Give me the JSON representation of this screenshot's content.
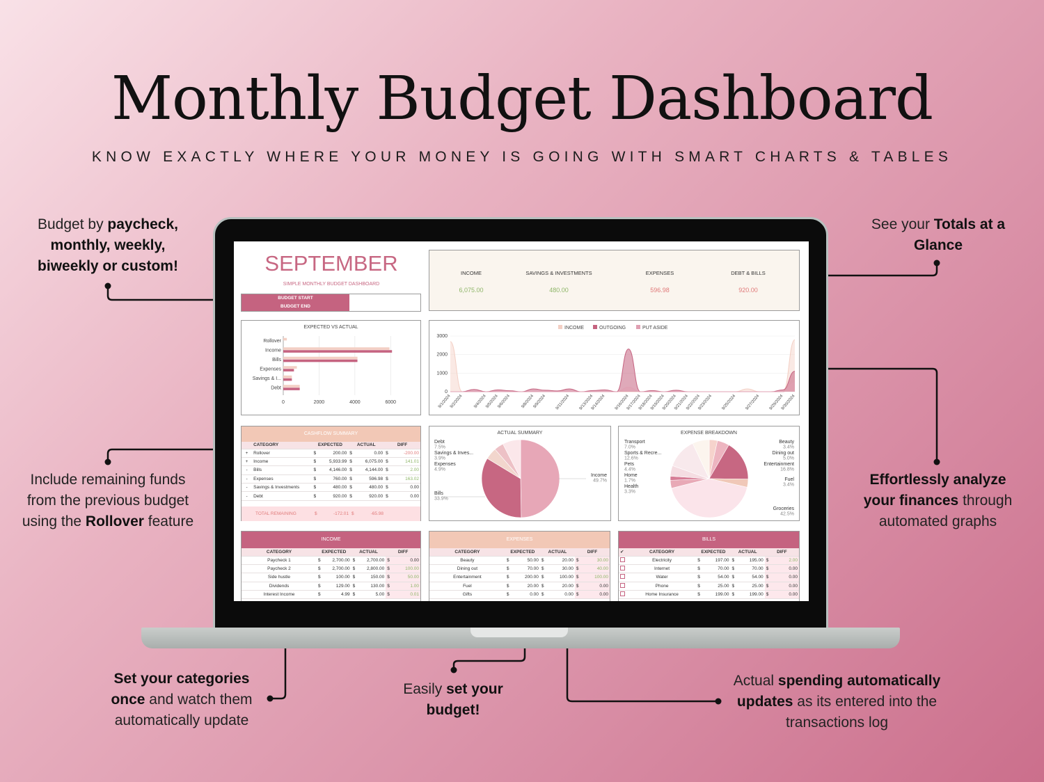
{
  "title": "Monthly Budget Dashboard",
  "subtitle": "KNOW EXACTLY WHERE YOUR MONEY IS GOING WITH SMART CHARTS & TABLES",
  "callouts": {
    "top_left": {
      "a": "Budget by ",
      "b": "paycheck,",
      "c": "monthly, weekly,",
      "d": "biweekly or custom!"
    },
    "top_right": {
      "a": "See your ",
      "b": "Totals at a",
      "c": "Glance"
    },
    "mid_left": {
      "a": "Include remaining funds",
      "b": "from the previous budget",
      "c": "using the ",
      "d": "Rollover",
      "e": " feature"
    },
    "mid_right": {
      "a": "Effortlessly analyze",
      "b": "your finances",
      "c": " through",
      "d": "automated graphs"
    },
    "bot_left": {
      "a": "Set your categories",
      "b": "once",
      "c": " and watch them",
      "d": "automatically update"
    },
    "bot_mid": {
      "a": "Easily ",
      "b": "set your",
      "c": "budget!"
    },
    "bot_right": {
      "a": "Actual ",
      "b": "spending automatically",
      "c": "updates",
      "d": " as its entered into the",
      "e": "transactions log"
    }
  },
  "dashboard": {
    "month": "SEPTEMBER",
    "month_sub": "SIMPLE MONTHLY BUDGET DASHBOARD",
    "budget_start": "BUDGET START",
    "budget_end": "BUDGET END",
    "totals": [
      {
        "label": "INCOME",
        "value": "6,075.00",
        "color": "#8db567"
      },
      {
        "label": "SAVINGS & INVESTMENTS",
        "value": "480.00",
        "color": "#8db567"
      },
      {
        "label": "EXPENSES",
        "value": "596.98",
        "color": "#e07a7a"
      },
      {
        "label": "DEBT & BILLS",
        "value": "920.00",
        "color": "#e07a7a"
      }
    ],
    "evsa_title": "EXPECTED VS ACTUAL",
    "line_legend": [
      "INCOME",
      "OUTGOING",
      "PUT ASIDE"
    ],
    "cashflow": {
      "title": "CASHFLOW SUMMARY",
      "cols": [
        "CATEGORY",
        "EXPECTED",
        "ACTUAL",
        "DIFF"
      ],
      "rows": [
        {
          "sign": "+",
          "cat": "Rollover",
          "exp": "200.00",
          "act": "0.00",
          "diff": "-200.00",
          "dc": "rd"
        },
        {
          "sign": "+",
          "cat": "Income",
          "exp": "5,933.99",
          "act": "6,075.00",
          "diff": "141.01",
          "dc": "gr"
        },
        {
          "sign": "-",
          "cat": "Bills",
          "exp": "4,146.00",
          "act": "4,144.00",
          "diff": "2.00",
          "dc": "gr"
        },
        {
          "sign": "-",
          "cat": "Expenses",
          "exp": "760.00",
          "act": "596.98",
          "diff": "163.02",
          "dc": "gr"
        },
        {
          "sign": "-",
          "cat": "Savings & Investments",
          "exp": "480.00",
          "act": "480.00",
          "diff": "0.00",
          "dc": ""
        },
        {
          "sign": "-",
          "cat": "Debt",
          "exp": "920.00",
          "act": "920.00",
          "diff": "0.00",
          "dc": ""
        }
      ],
      "total_label": "TOTAL REMAINING",
      "total_exp": "-172.01",
      "total_act": "-65.98"
    },
    "actual_summary_title": "ACTUAL SUMMARY",
    "expense_breakdown_title": "EXPENSE BREAKDOWN",
    "income_table": {
      "title": "INCOME",
      "cols": [
        "CATEGORY",
        "EXPECTED",
        "ACTUAL",
        "DIFF"
      ],
      "rows": [
        {
          "cat": "Paycheck 1",
          "exp": "2,700.00",
          "act": "2,700.00",
          "diff": "0.00",
          "dc": ""
        },
        {
          "cat": "Paycheck 2",
          "exp": "2,700.00",
          "act": "2,800.00",
          "diff": "100.00",
          "dc": "gr"
        },
        {
          "cat": "Side hustle",
          "exp": "100.00",
          "act": "150.00",
          "diff": "50.00",
          "dc": "gr"
        },
        {
          "cat": "Dividends",
          "exp": "129.00",
          "act": "130.00",
          "diff": "1.00",
          "dc": "gr"
        },
        {
          "cat": "Interest Income",
          "exp": "4.99",
          "act": "5.00",
          "diff": "0.01",
          "dc": "gr"
        }
      ]
    },
    "expenses_table": {
      "title": "EXPENSES",
      "cols": [
        "CATEGORY",
        "EXPECTED",
        "ACTUAL",
        "DIFF"
      ],
      "rows": [
        {
          "cat": "Beauty",
          "exp": "50.00",
          "act": "20.00",
          "diff": "30.00",
          "dc": "gr"
        },
        {
          "cat": "Dining out",
          "exp": "70.00",
          "act": "30.00",
          "diff": "40.00",
          "dc": "gr"
        },
        {
          "cat": "Entertainment",
          "exp": "200.00",
          "act": "100.00",
          "diff": "100.00",
          "dc": "gr"
        },
        {
          "cat": "Fuel",
          "exp": "20.00",
          "act": "20.00",
          "diff": "0.00",
          "dc": ""
        },
        {
          "cat": "Gifts",
          "exp": "0.00",
          "act": "0.00",
          "diff": "0.00",
          "dc": ""
        }
      ]
    },
    "bills_table": {
      "title": "BILLS",
      "cols": [
        "✔",
        "CATEGORY",
        "EXPECTED",
        "ACTUAL",
        "DIFF"
      ],
      "rows": [
        {
          "cat": "Electricity",
          "exp": "197.00",
          "act": "195.00",
          "diff": "2.00",
          "dc": "gr"
        },
        {
          "cat": "Internet",
          "exp": "70.00",
          "act": "70.00",
          "diff": "0.00",
          "dc": ""
        },
        {
          "cat": "Water",
          "exp": "54.00",
          "act": "54.00",
          "diff": "0.00",
          "dc": ""
        },
        {
          "cat": "Phone",
          "exp": "25.00",
          "act": "25.00",
          "diff": "0.00",
          "dc": ""
        },
        {
          "cat": "Home Insurance",
          "exp": "199.00",
          "act": "199.00",
          "diff": "0.00",
          "dc": ""
        }
      ]
    }
  },
  "chart_data": [
    {
      "type": "bar",
      "title": "EXPECTED VS ACTUAL",
      "orientation": "horizontal",
      "categories": [
        "Rollover",
        "Income",
        "Bills",
        "Expenses",
        "Savings & I...",
        "Debt"
      ],
      "series": [
        {
          "values": [
            200,
            5933.99,
            4146,
            760,
            480,
            920
          ],
          "color": "#f3cfc4"
        },
        {
          "values": [
            0,
            6075,
            4144,
            596.98,
            480,
            920
          ],
          "color": "#c56380"
        }
      ],
      "xticks": [
        "0",
        "2000",
        "4000",
        "6000"
      ],
      "xlim": [
        0,
        7000
      ]
    },
    {
      "type": "area",
      "legend": [
        "INCOME",
        "OUTGOING",
        "PUT ASIDE"
      ],
      "legend_position": "top",
      "yticks": [
        "0",
        "1000",
        "2000",
        "3000"
      ],
      "ylim": [
        0,
        3000
      ],
      "x": [
        "9/1/2024",
        "9/2/2024",
        "9/3/2024",
        "9/4/2024",
        "9/5/2024",
        "9/6/2024",
        "9/7/2024",
        "9/8/2024",
        "9/9/2024",
        "9/10/2024",
        "9/11/2024",
        "9/12/2024",
        "9/13/2024",
        "9/14/2024",
        "9/15/2024",
        "9/16/2024",
        "9/17/2024",
        "9/18/2024",
        "9/19/2024",
        "9/20/2024",
        "9/21/2024",
        "9/22/2024",
        "9/23/2024",
        "9/24/2024",
        "9/25/2024",
        "9/26/2024",
        "9/27/2024",
        "9/28/2024",
        "9/29/2024",
        "9/30/2024"
      ],
      "xticks": [
        "9/1/2024",
        "9/2/2024",
        "9/4/2024",
        "9/5/2024",
        "9/6/2024",
        "9/8/2024",
        "9/9/2024",
        "9/11/2024",
        "9/13/2024",
        "9/14/2024",
        "9/16/2024",
        "9/17/2024",
        "9/18/2024",
        "9/19/2024",
        "9/20/2024",
        "9/21/2024",
        "9/22/2024",
        "9/23/2024",
        "9/25/2024",
        "9/27/2024",
        "9/29/2024",
        "9/30/2024"
      ],
      "series": [
        {
          "name": "INCOME",
          "color": "#f3cfc4",
          "values": [
            2700,
            0,
            0,
            0,
            0,
            0,
            0,
            0,
            0,
            0,
            0,
            0,
            0,
            0,
            0,
            0,
            0,
            0,
            0,
            0,
            0,
            0,
            0,
            0,
            0,
            150,
            0,
            0,
            0,
            2800
          ]
        },
        {
          "name": "OUTGOING",
          "color": "#c56380",
          "values": [
            0,
            0,
            120,
            0,
            100,
            50,
            0,
            150,
            80,
            40,
            150,
            0,
            60,
            100,
            0,
            2300,
            0,
            60,
            0,
            80,
            0,
            0,
            0,
            0,
            0,
            0,
            0,
            0,
            100,
            1100
          ]
        },
        {
          "name": "PUT ASIDE",
          "color": "#e0a0b3",
          "values": [
            0,
            0,
            0,
            0,
            0,
            0,
            0,
            0,
            0,
            0,
            0,
            0,
            0,
            0,
            0,
            240,
            0,
            0,
            0,
            0,
            0,
            0,
            0,
            0,
            0,
            0,
            0,
            0,
            0,
            480
          ]
        }
      ]
    },
    {
      "type": "pie",
      "title": "ACTUAL SUMMARY",
      "slices": [
        {
          "label": "Income",
          "pct": "49.7%",
          "value": 49.7,
          "color": "#e7a7b7"
        },
        {
          "label": "Bills",
          "pct": "33.9%",
          "value": 33.9,
          "color": "#c76782"
        },
        {
          "label": "Expenses",
          "pct": "4.9%",
          "value": 4.9,
          "color": "#f2d6cd"
        },
        {
          "label": "Savings & Inves...",
          "pct": "3.9%",
          "value": 3.9,
          "color": "#edc1c6"
        },
        {
          "label": "Debt",
          "pct": "7.5%",
          "value": 7.5,
          "color": "#fbe7ea"
        }
      ]
    },
    {
      "type": "pie",
      "title": "EXPENSE BREAKDOWN",
      "slices": [
        {
          "label": "Beauty",
          "pct": "3.4%",
          "value": 3.4,
          "color": "#f6d3cc"
        },
        {
          "label": "Dining out",
          "pct": "5.0%",
          "value": 5.0,
          "color": "#edb5c0"
        },
        {
          "label": "Entertainment",
          "pct": "16.8%",
          "value": 16.8,
          "color": "#c76782"
        },
        {
          "label": "Fuel",
          "pct": "3.4%",
          "value": 3.4,
          "color": "#f0c8b8"
        },
        {
          "label": "Groceries",
          "pct": "42.5%",
          "value": 42.5,
          "color": "#fbe4ea"
        },
        {
          "label": "Health",
          "pct": "3.3%",
          "value": 3.3,
          "color": "#e8a9b6"
        },
        {
          "label": "Home",
          "pct": "1.7%",
          "value": 1.7,
          "color": "#d67d96"
        },
        {
          "label": "Pets",
          "pct": "4.4%",
          "value": 4.4,
          "color": "#f5dde2"
        },
        {
          "label": "Sports & Recre...",
          "pct": "12.6%",
          "value": 12.6,
          "color": "#f8e9ec"
        },
        {
          "label": "Transport",
          "pct": "7.0%",
          "value": 7.0,
          "color": "#fcf5ee"
        }
      ]
    }
  ]
}
